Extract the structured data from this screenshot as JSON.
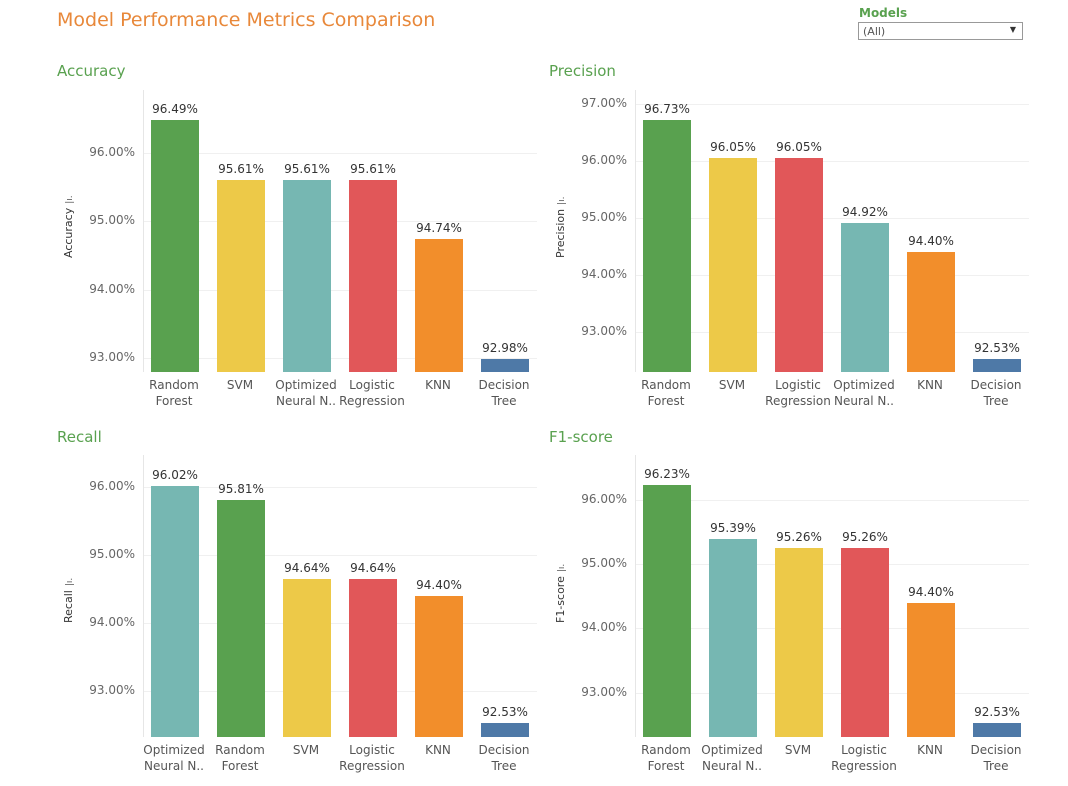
{
  "title": "Model Performance Metrics Comparison",
  "filter": {
    "label": "Models",
    "value": "(All)"
  },
  "colors": {
    "Random Forest": "#59a14f",
    "SVM": "#edc948",
    "Optimized Neural N..": "#76b7b2",
    "Logistic Regression": "#e15759",
    "KNN": "#f28e2b",
    "Decision Tree": "#4e79a7"
  },
  "chart_data": [
    {
      "type": "bar",
      "title": "Accuracy",
      "ylabel": "Accuracy",
      "categories": [
        "Random Forest",
        "SVM",
        "Optimized Neural N..",
        "Logistic Regression",
        "KNN",
        "Decision Tree"
      ],
      "values": [
        96.49,
        95.61,
        95.61,
        95.61,
        94.74,
        92.98
      ],
      "ticks": [
        93,
        94,
        95,
        96
      ],
      "ylim": [
        92.79,
        96.93
      ],
      "grid": true
    },
    {
      "type": "bar",
      "title": "Precision",
      "ylabel": "Precision",
      "categories": [
        "Random Forest",
        "SVM",
        "Logistic Regression",
        "Optimized Neural N..",
        "KNN",
        "Decision Tree"
      ],
      "values": [
        96.73,
        96.05,
        96.05,
        94.92,
        94.4,
        92.53
      ],
      "ticks": [
        93,
        94,
        95,
        96,
        97
      ],
      "ylim": [
        92.3,
        97.25
      ],
      "grid": true
    },
    {
      "type": "bar",
      "title": "Recall",
      "ylabel": "Recall",
      "categories": [
        "Optimized Neural N..",
        "Random Forest",
        "SVM",
        "Logistic Regression",
        "KNN",
        "Decision Tree"
      ],
      "values": [
        96.02,
        95.81,
        94.64,
        94.64,
        94.4,
        92.53
      ],
      "ticks": [
        93,
        94,
        95,
        96
      ],
      "ylim": [
        92.32,
        96.47
      ],
      "grid": true
    },
    {
      "type": "bar",
      "title": "F1-score",
      "ylabel": "F1-score",
      "categories": [
        "Random Forest",
        "Optimized Neural N..",
        "SVM",
        "Logistic Regression",
        "KNN",
        "Decision Tree"
      ],
      "values": [
        96.23,
        95.39,
        95.26,
        95.26,
        94.4,
        92.53
      ],
      "ticks": [
        93,
        94,
        95,
        96
      ],
      "ylim": [
        92.31,
        96.7
      ],
      "grid": true
    }
  ]
}
